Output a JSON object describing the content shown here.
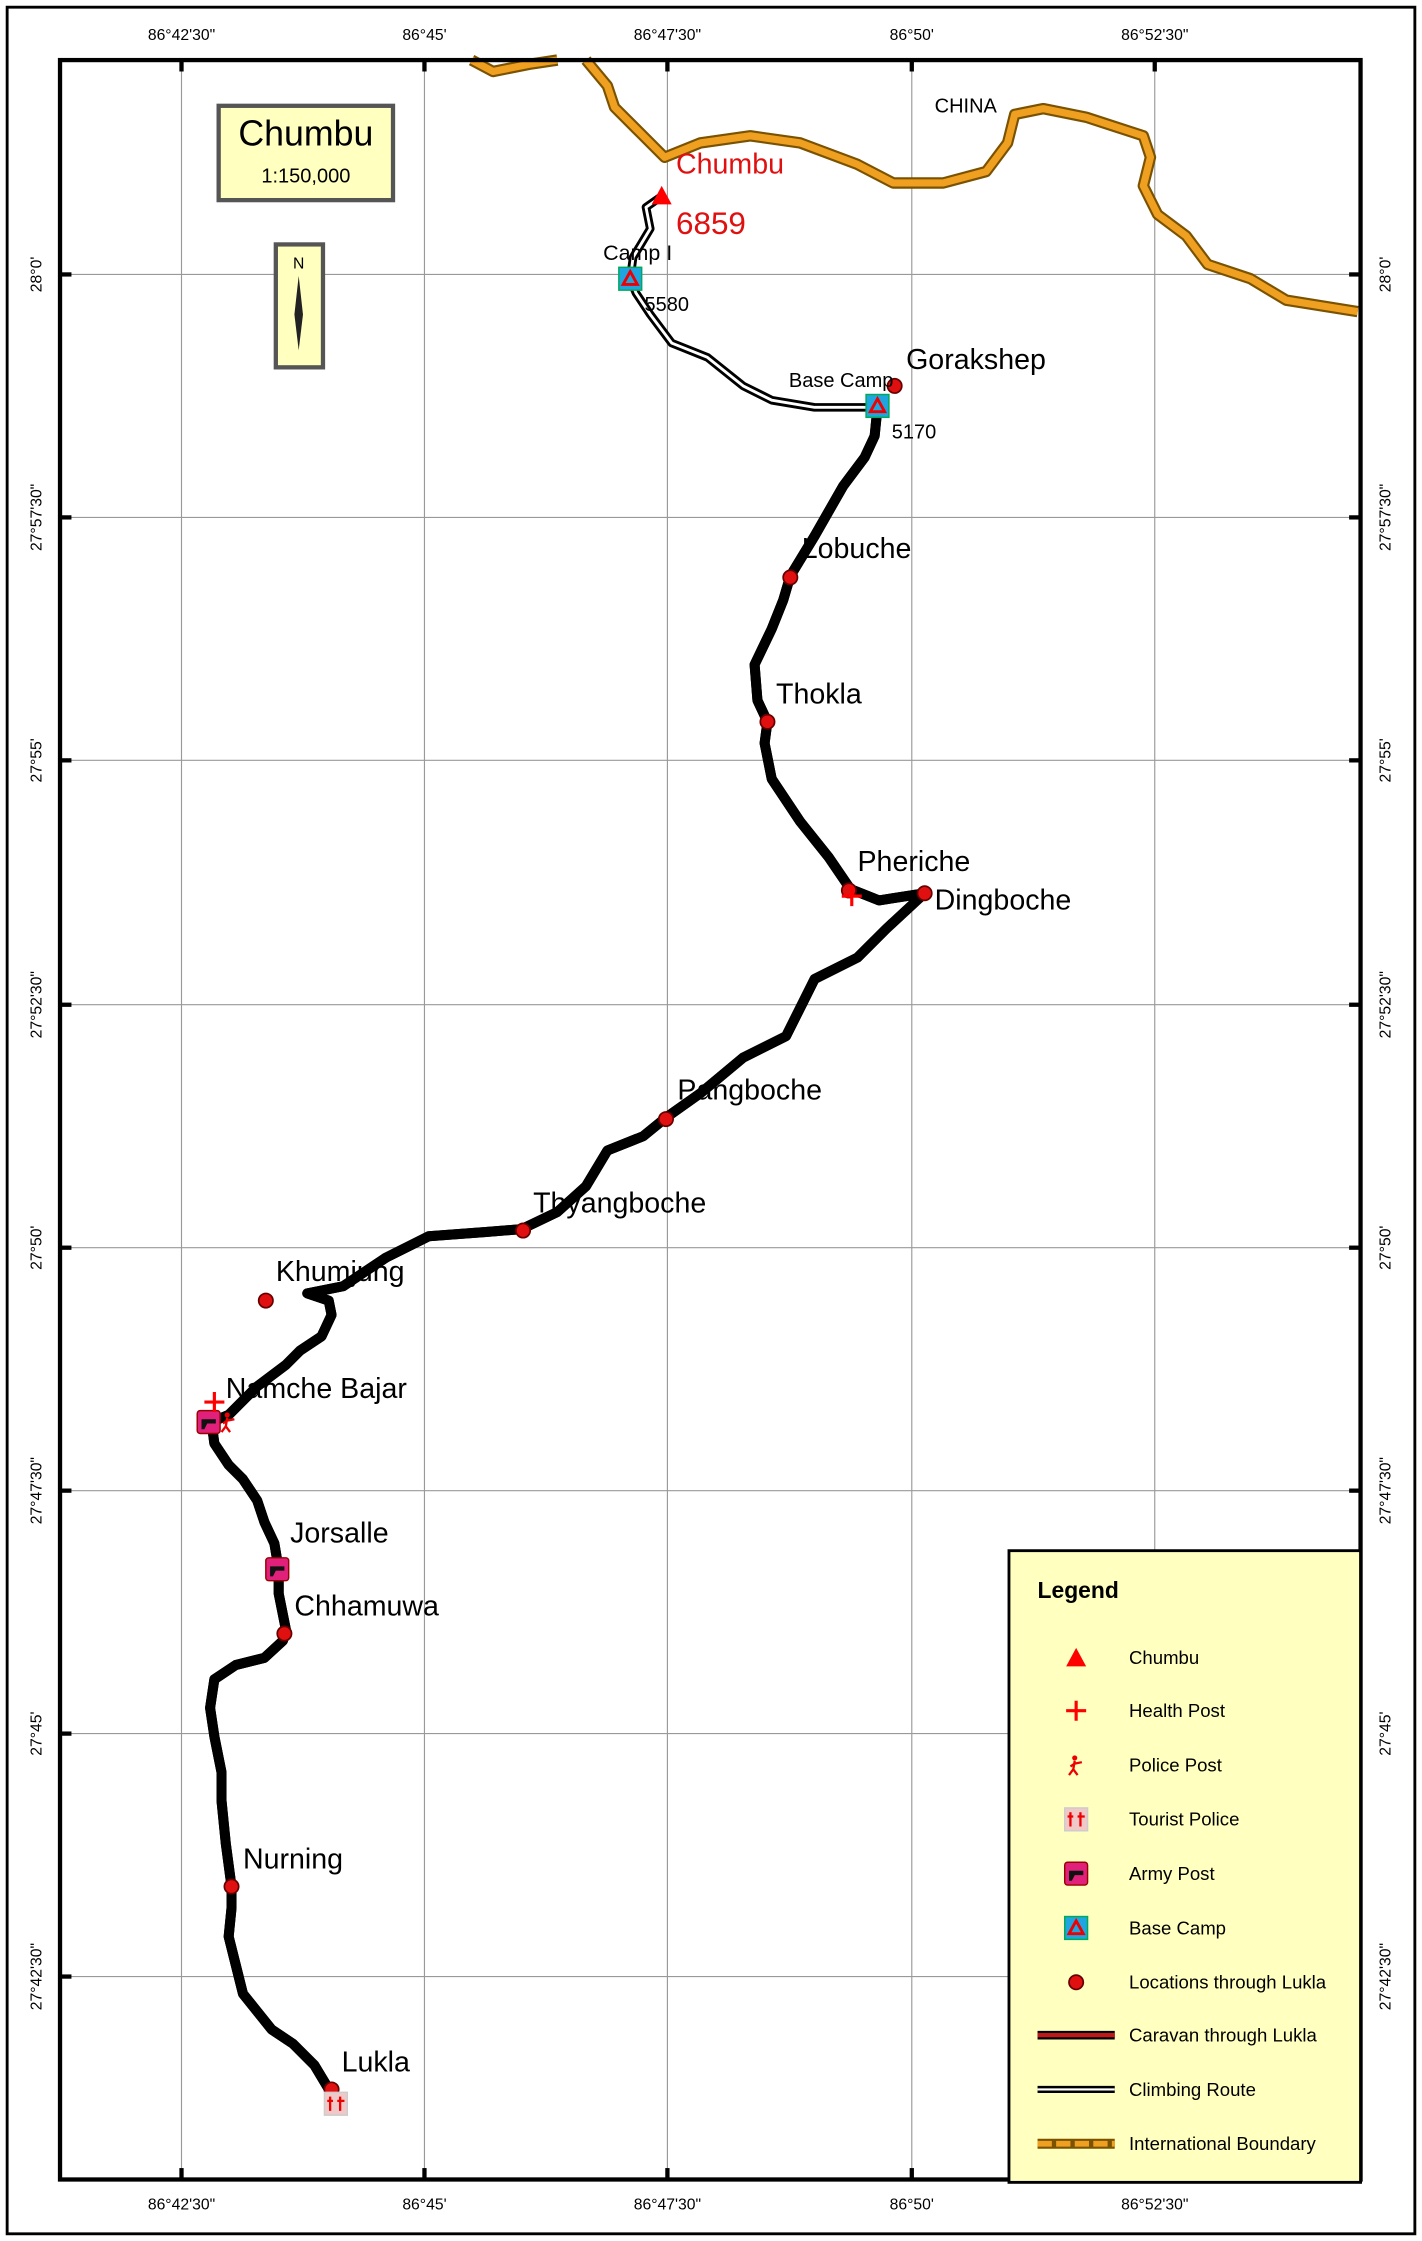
{
  "title_box": {
    "title": "Chumbu",
    "scale": "1:150,000"
  },
  "north_arrow": {
    "label": "N"
  },
  "graticule": {
    "longitudes": [
      "86°42'30\"",
      "86°45'",
      "86°47'30\"",
      "86°50'",
      "86°52'30\""
    ],
    "latitudes": [
      "28°0'",
      "27°57'30\"",
      "27°55'",
      "27°52'30\"",
      "27°50'",
      "27°47'30\"",
      "27°45'",
      "27°42'30\""
    ]
  },
  "summit": {
    "label": "Chumbu",
    "elevation": "6859"
  },
  "camps": [
    {
      "label": "Camp I",
      "elevation": "5580"
    },
    {
      "label": "Base Camp",
      "elevation": "5170"
    }
  ],
  "country": "CHINA",
  "places": [
    "Gorakshep",
    "Lobuche",
    "Thokla",
    "Pheriche",
    "Dingboche",
    "Pangboche",
    "Thyangboche",
    "Khumjung",
    "Namche Bajar",
    "Jorsalle",
    "Chhamuwa",
    "Nurning",
    "Lukla"
  ],
  "legend": {
    "title": "Legend",
    "items": [
      "Chumbu",
      "Health Post",
      "Police Post",
      "Tourist Police",
      "Army Post",
      "Base Camp",
      "Locations through Lukla",
      "Caravan through Lukla",
      "Climbing Route",
      "International Boundary"
    ]
  }
}
